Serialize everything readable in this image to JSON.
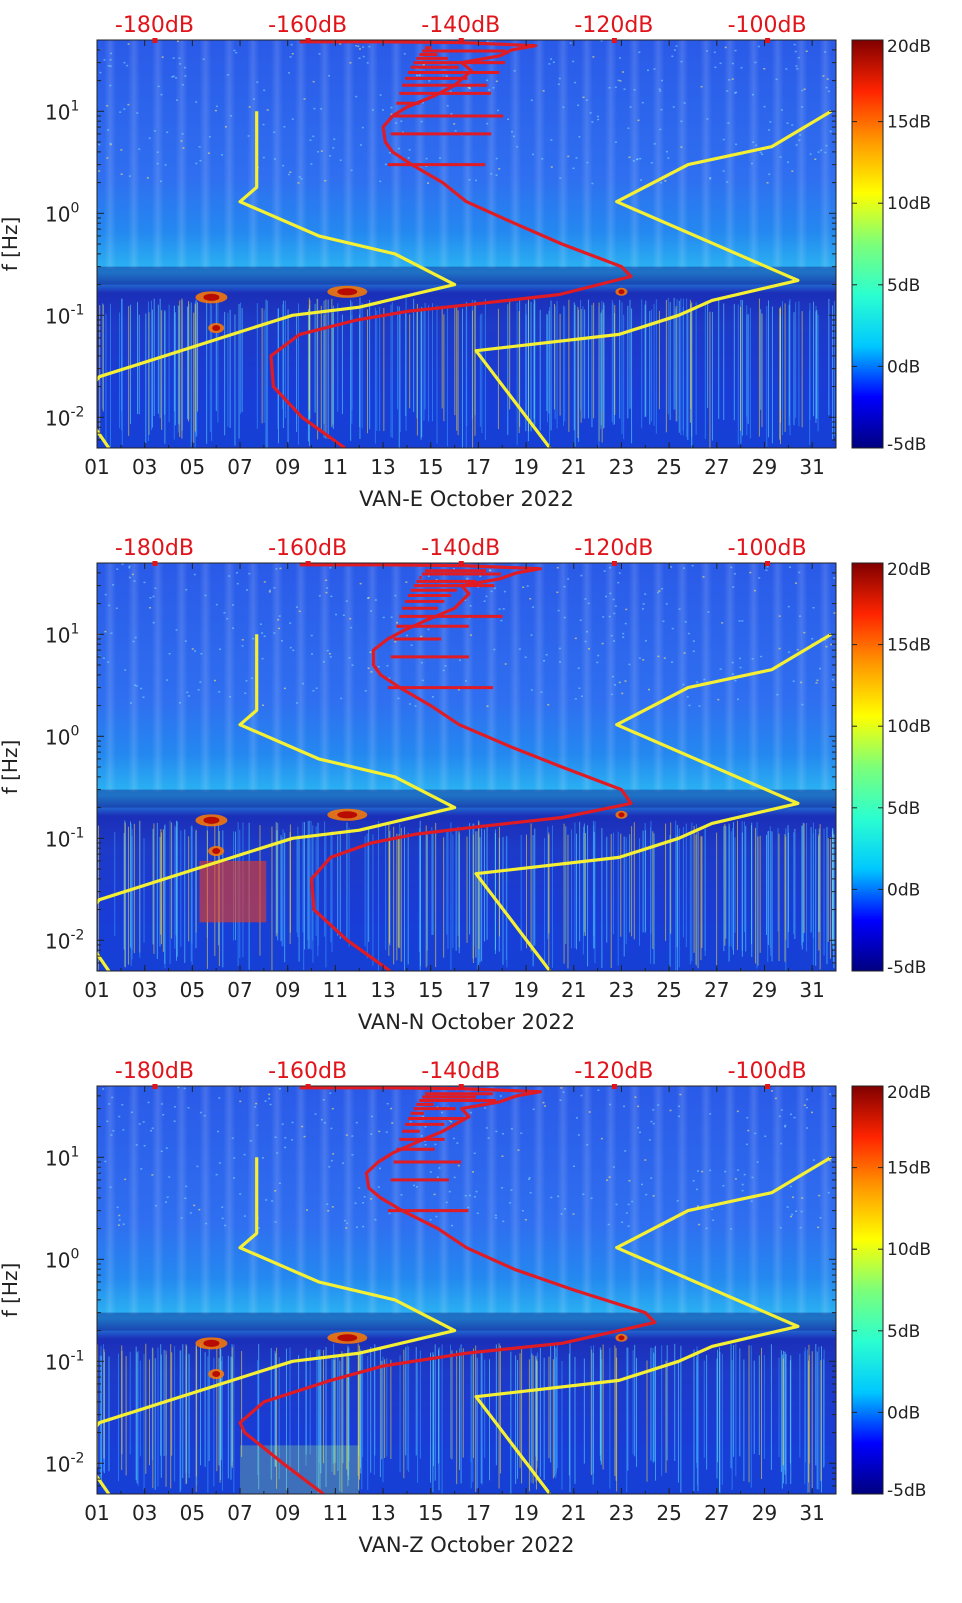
{
  "colors": {
    "top_axis_text": "#e0141a",
    "yellow_curve": "#f5f033",
    "red_curve": "#e01b24",
    "axis": "#222222",
    "spectrogram_base": "#1f3fd0"
  },
  "colorbar": {
    "labels": [
      "20dB",
      "15dB",
      "10dB",
      "5dB",
      "0dB",
      "-5dB"
    ],
    "stops": [
      "#00007f",
      "#0000ff",
      "#00c8ff",
      "#2bffd0",
      "#7cff79",
      "#ffff00",
      "#ff9a00",
      "#ff2400",
      "#800000"
    ]
  },
  "chart_data": [
    {
      "type": "heatmap",
      "title": "VAN-E October 2022",
      "xlabel": "VAN-E October 2022",
      "ylabel": "f [Hz]",
      "x_ticks": [
        "01",
        "03",
        "05",
        "07",
        "09",
        "11",
        "13",
        "15",
        "17",
        "19",
        "21",
        "23",
        "25",
        "27",
        "29",
        "31"
      ],
      "x_range": [
        1,
        32
      ],
      "y_ticks": [
        "10^1",
        "10^0",
        "10^-1",
        "10^-2"
      ],
      "y_tick_values": [
        10,
        1,
        0.1,
        0.01
      ],
      "y_range": [
        0.005,
        50
      ],
      "y_scale": "log",
      "top_axis_ticks": [
        "-180dB",
        "-160dB",
        "-140dB",
        "-120dB",
        "-100dB"
      ],
      "top_axis_values": [
        -180,
        -160,
        -140,
        -120,
        -100
      ],
      "top_axis_range": [
        -187.5,
        -91
      ],
      "colorbar_ticks": [
        "20dB",
        "15dB",
        "10dB",
        "5dB",
        "0dB",
        "-5dB"
      ],
      "colorbar_range": [
        -5,
        20
      ],
      "series": [
        {
          "name": "yellow-model-low",
          "x": [
            7.7,
            7.7,
            7.0,
            10.3,
            13.5,
            16.0,
            12.0,
            9.2,
            7.1,
            1.1,
            0.4,
            0.9,
            1.5
          ],
          "y": [
            10,
            1.8,
            1.3,
            0.6,
            0.4,
            0.2,
            0.12,
            0.1,
            0.07,
            0.025,
            0.016,
            0.008,
            0.005
          ]
        },
        {
          "name": "yellow-model-high",
          "x": [
            31.8,
            29.3,
            25.8,
            22.8,
            30.4,
            26.8,
            25.4,
            22.9,
            16.9,
            20.0
          ],
          "y": [
            10,
            4.5,
            3.0,
            1.3,
            0.22,
            0.14,
            0.1,
            0.065,
            0.045,
            0.005
          ]
        },
        {
          "name": "red-noise-model",
          "x": [
            11.4,
            9.6,
            8.4,
            8.3,
            9.5,
            11.9,
            14.1,
            17.0,
            20.4,
            23.4,
            23.0,
            20.5,
            18.5,
            16.5,
            15.5,
            14.2,
            13.4,
            13.1,
            13.0,
            13.4,
            14.0,
            15.1,
            16.0,
            16.7,
            16.3,
            17.9,
            18.4,
            19.4,
            16.4,
            13.0,
            9.5
          ],
          "y": [
            0.005,
            0.01,
            0.02,
            0.04,
            0.065,
            0.09,
            0.11,
            0.13,
            0.16,
            0.24,
            0.3,
            0.5,
            0.8,
            1.3,
            2.0,
            3.0,
            4.0,
            5.0,
            7.0,
            9.0,
            11,
            14,
            18,
            25,
            30,
            35,
            40,
            44,
            47,
            48,
            48
          ]
        }
      ]
    },
    {
      "type": "heatmap",
      "title": "VAN-N October 2022",
      "xlabel": "VAN-N October 2022",
      "ylabel": "f [Hz]",
      "x_ticks": [
        "01",
        "03",
        "05",
        "07",
        "09",
        "11",
        "13",
        "15",
        "17",
        "19",
        "21",
        "23",
        "25",
        "27",
        "29",
        "31"
      ],
      "x_range": [
        1,
        32
      ],
      "y_ticks": [
        "10^1",
        "10^0",
        "10^-1",
        "10^-2"
      ],
      "y_tick_values": [
        10,
        1,
        0.1,
        0.01
      ],
      "y_range": [
        0.005,
        50
      ],
      "y_scale": "log",
      "top_axis_ticks": [
        "-180dB",
        "-160dB",
        "-140dB",
        "-120dB",
        "-100dB"
      ],
      "top_axis_values": [
        -180,
        -160,
        -140,
        -120,
        -100
      ],
      "top_axis_range": [
        -187.5,
        -91
      ],
      "colorbar_ticks": [
        "20dB",
        "15dB",
        "10dB",
        "5dB",
        "0dB",
        "-5dB"
      ],
      "colorbar_range": [
        -5,
        20
      ],
      "series": [
        {
          "name": "yellow-model-low",
          "x": [
            7.7,
            7.7,
            7.0,
            10.3,
            13.5,
            16.0,
            12.0,
            9.2,
            7.1,
            1.1,
            0.4,
            0.9,
            1.5
          ],
          "y": [
            10,
            1.8,
            1.3,
            0.6,
            0.4,
            0.2,
            0.12,
            0.1,
            0.07,
            0.025,
            0.016,
            0.008,
            0.005
          ]
        },
        {
          "name": "yellow-model-high",
          "x": [
            31.8,
            29.3,
            25.8,
            22.8,
            30.4,
            26.8,
            25.4,
            22.9,
            16.9,
            20.0
          ],
          "y": [
            10,
            4.5,
            3.0,
            1.3,
            0.22,
            0.14,
            0.1,
            0.065,
            0.045,
            0.005
          ]
        },
        {
          "name": "red-noise-model",
          "x": [
            13.3,
            11.5,
            10.1,
            10.0,
            10.8,
            12.5,
            14.4,
            17.0,
            20.5,
            23.4,
            23.0,
            20.5,
            18.3,
            16.2,
            15.0,
            13.7,
            12.9,
            12.6,
            12.6,
            13.2,
            13.9,
            14.9,
            16.0,
            16.6,
            16.3,
            17.9,
            18.6,
            19.6,
            16.4,
            13.0,
            9.5
          ],
          "y": [
            0.005,
            0.01,
            0.02,
            0.04,
            0.065,
            0.09,
            0.11,
            0.13,
            0.16,
            0.22,
            0.3,
            0.5,
            0.8,
            1.3,
            2.0,
            3.0,
            4.0,
            5.0,
            7.0,
            9.0,
            11,
            14,
            18,
            25,
            30,
            35,
            40,
            44,
            47,
            48,
            48
          ]
        }
      ]
    },
    {
      "type": "heatmap",
      "title": "VAN-Z October 2022",
      "xlabel": "VAN-Z October 2022",
      "ylabel": "f [Hz]",
      "x_ticks": [
        "01",
        "03",
        "05",
        "07",
        "09",
        "11",
        "13",
        "15",
        "17",
        "19",
        "21",
        "23",
        "25",
        "27",
        "29",
        "31"
      ],
      "x_range": [
        1,
        32
      ],
      "y_ticks": [
        "10^1",
        "10^0",
        "10^-1",
        "10^-2"
      ],
      "y_tick_values": [
        10,
        1,
        0.1,
        0.01
      ],
      "y_range": [
        0.005,
        50
      ],
      "y_scale": "log",
      "top_axis_ticks": [
        "-180dB",
        "-160dB",
        "-140dB",
        "-120dB",
        "-100dB"
      ],
      "top_axis_values": [
        -180,
        -160,
        -140,
        -120,
        -100
      ],
      "top_axis_range": [
        -187.5,
        -91
      ],
      "colorbar_ticks": [
        "20dB",
        "15dB",
        "10dB",
        "5dB",
        "0dB",
        "-5dB"
      ],
      "colorbar_range": [
        -5,
        20
      ],
      "series": [
        {
          "name": "yellow-model-low",
          "x": [
            7.7,
            7.7,
            7.0,
            10.3,
            13.5,
            16.0,
            12.0,
            9.2,
            7.1,
            1.1,
            0.4,
            0.9,
            1.5
          ],
          "y": [
            10,
            1.8,
            1.3,
            0.6,
            0.4,
            0.2,
            0.12,
            0.1,
            0.07,
            0.025,
            0.016,
            0.008,
            0.005
          ]
        },
        {
          "name": "yellow-model-high",
          "x": [
            31.8,
            29.3,
            25.8,
            22.8,
            30.4,
            26.8,
            25.4,
            22.9,
            16.9,
            20.0
          ],
          "y": [
            10,
            4.5,
            3.0,
            1.3,
            0.22,
            0.14,
            0.1,
            0.065,
            0.045,
            0.005
          ]
        },
        {
          "name": "red-noise-model",
          "x": [
            10.5,
            8.8,
            7.2,
            7.0,
            8.0,
            10.8,
            13.0,
            16.5,
            20.5,
            24.4,
            24.0,
            21.0,
            18.5,
            16.5,
            15.3,
            13.8,
            12.9,
            12.4,
            12.3,
            12.8,
            13.4,
            14.4,
            15.5,
            16.6,
            16.3,
            17.9,
            18.6,
            19.6,
            16.4,
            13.0,
            9.5
          ],
          "y": [
            0.005,
            0.01,
            0.02,
            0.025,
            0.04,
            0.065,
            0.09,
            0.12,
            0.15,
            0.24,
            0.3,
            0.5,
            0.8,
            1.3,
            2.0,
            3.0,
            4.0,
            5.0,
            7.0,
            9.0,
            11,
            14,
            18,
            25,
            30,
            35,
            40,
            44,
            47,
            48,
            48
          ]
        }
      ]
    }
  ]
}
